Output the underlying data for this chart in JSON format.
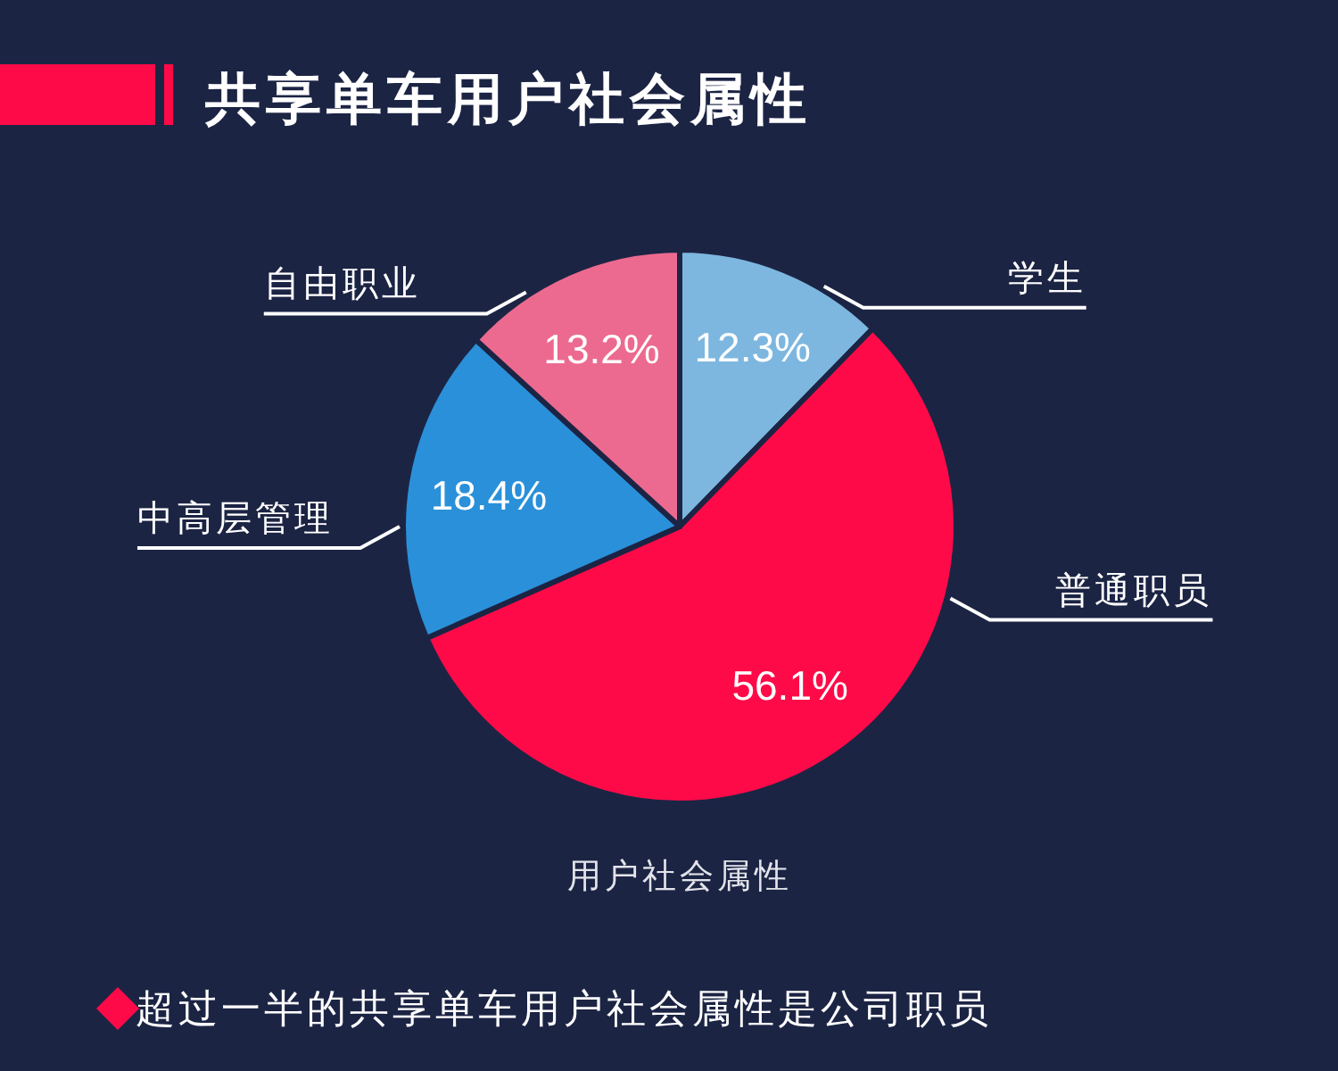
{
  "chart_data": {
    "type": "pie",
    "title": "共享单车用户社会属性",
    "xlabel": "用户社会属性",
    "categories": [
      "学生",
      "普通职员",
      "中高层管理",
      "自由职业"
    ],
    "values": [
      12.3,
      56.1,
      18.4,
      13.2
    ],
    "colors": [
      "#7db7e0",
      "#ff0a48",
      "#2a90d9",
      "#ec6a8f"
    ],
    "value_labels": [
      "12.3%",
      "56.1%",
      "18.4%",
      "13.2%"
    ],
    "annotations": [
      "超过一半的共享单车用户社会属性是公司职员"
    ]
  }
}
